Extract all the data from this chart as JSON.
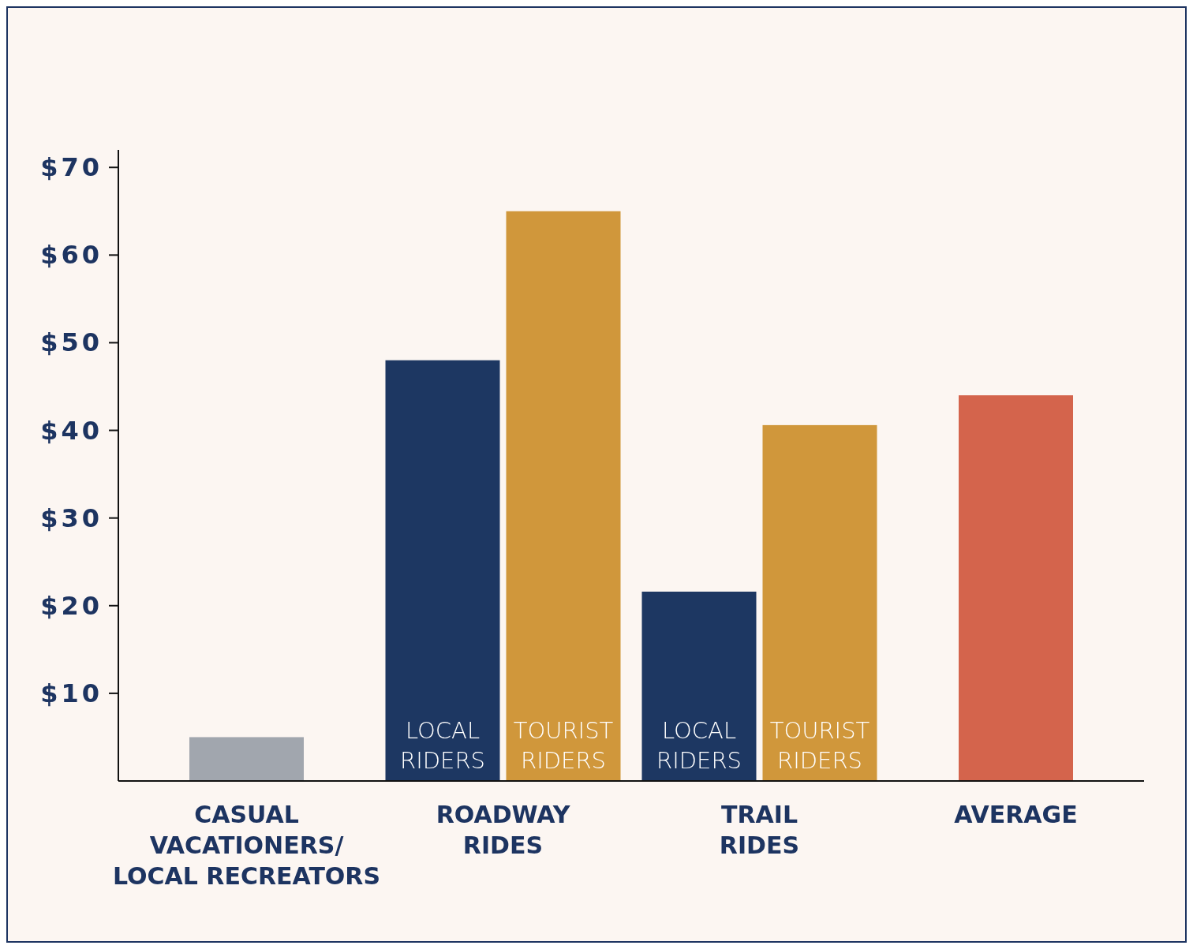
{
  "chart_data": {
    "type": "bar",
    "categories": [
      "CASUAL\nVACATIONERS/\nLOCAL RECREATORS",
      "ROADWAY\nRIDES",
      "TRAIL\nRIDES",
      "AVERAGE"
    ],
    "series": [
      {
        "name": "LOCAL RIDERS",
        "color": "#1d3762",
        "values": [
          null,
          48,
          21.6,
          null
        ]
      },
      {
        "name": "TOURIST RIDERS",
        "color": "#d0973b",
        "values": [
          null,
          65,
          40.6,
          null
        ]
      },
      {
        "colors": [
          "#a1a6ae",
          null,
          null,
          "#d4644c"
        ],
        "values": [
          5,
          null,
          null,
          44
        ]
      }
    ],
    "ylim": [
      0,
      72
    ],
    "yticks": [
      {
        "value": 10,
        "label": "$10"
      },
      {
        "value": 20,
        "label": "$20"
      },
      {
        "value": 30,
        "label": "$30"
      },
      {
        "value": 40,
        "label": "$40"
      },
      {
        "value": 50,
        "label": "$50"
      },
      {
        "value": 60,
        "label": "$60"
      },
      {
        "value": 70,
        "label": "$70"
      }
    ]
  }
}
